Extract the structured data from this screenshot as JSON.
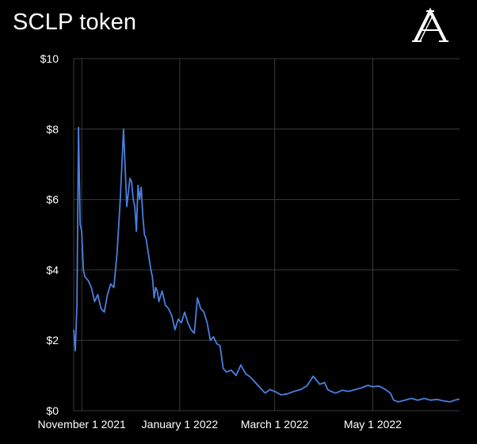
{
  "chart_data": {
    "type": "line",
    "title": "SCLP token",
    "xlabel": "",
    "ylabel": "",
    "x_tick_labels": [
      "November 1 2021",
      "January 1 2022",
      "March 1 2022",
      "May 1 2022"
    ],
    "x_tick_dates": [
      "2021-11-01",
      "2022-01-01",
      "2022-03-01",
      "2022-05-01"
    ],
    "xlim": [
      "2021-10-27",
      "2022-06-24"
    ],
    "y_tick_labels": [
      "$0",
      "$2",
      "$4",
      "$6",
      "$8",
      "$10"
    ],
    "y_tick_values": [
      0,
      2,
      4,
      6,
      8,
      10
    ],
    "ylim": [
      0,
      10
    ],
    "grid": true,
    "legend": "none",
    "colors": {
      "background": "#000000",
      "line": "#4a7fe0",
      "grid": "#3a3a3a",
      "text": "#ffffff"
    },
    "series": [
      {
        "x": [
          "2021-10-27",
          "2021-10-28",
          "2021-10-29",
          "2021-10-30",
          "2021-10-31",
          "2021-11-01",
          "2021-11-02",
          "2021-11-03",
          "2021-11-04",
          "2021-11-05",
          "2021-11-07",
          "2021-11-09",
          "2021-11-11",
          "2021-11-13",
          "2021-11-15",
          "2021-11-17",
          "2021-11-19",
          "2021-11-21",
          "2021-11-23",
          "2021-11-25",
          "2021-11-27",
          "2021-11-29",
          "2021-12-01",
          "2021-12-02",
          "2021-12-03",
          "2021-12-04",
          "2021-12-05",
          "2021-12-06",
          "2021-12-07",
          "2021-12-08",
          "2021-12-09",
          "2021-12-10",
          "2021-12-11",
          "2021-12-12",
          "2021-12-13",
          "2021-12-14",
          "2021-12-15",
          "2021-12-16",
          "2021-12-17",
          "2021-12-18",
          "2021-12-19",
          "2021-12-21",
          "2021-12-23",
          "2021-12-25",
          "2021-12-27",
          "2021-12-29",
          "2021-12-31",
          "2022-01-02",
          "2022-01-04",
          "2022-01-06",
          "2022-01-08",
          "2022-01-10",
          "2022-01-12",
          "2022-01-14",
          "2022-01-16",
          "2022-01-18",
          "2022-01-20",
          "2022-01-22",
          "2022-01-24",
          "2022-01-26",
          "2022-01-28",
          "2022-01-30",
          "2022-02-02",
          "2022-02-05",
          "2022-02-08",
          "2022-02-11",
          "2022-02-14",
          "2022-02-17",
          "2022-02-20",
          "2022-02-23",
          "2022-02-26",
          "2022-03-01",
          "2022-03-05",
          "2022-03-09",
          "2022-03-13",
          "2022-03-17",
          "2022-03-21",
          "2022-03-25",
          "2022-03-29",
          "2022-04-01",
          "2022-04-03",
          "2022-04-05",
          "2022-04-08",
          "2022-04-12",
          "2022-04-16",
          "2022-04-20",
          "2022-04-24",
          "2022-04-28",
          "2022-05-01",
          "2022-05-05",
          "2022-05-09",
          "2022-05-12",
          "2022-05-14",
          "2022-05-17",
          "2022-05-21",
          "2022-05-25",
          "2022-05-29",
          "2022-06-02",
          "2022-06-06",
          "2022-06-10",
          "2022-06-14",
          "2022-06-18",
          "2022-06-21",
          "2022-06-24"
        ],
        "y": [
          2.3,
          1.7,
          3.0,
          8.05,
          5.3,
          5.1,
          4.0,
          3.8,
          3.75,
          3.7,
          3.5,
          3.1,
          3.3,
          2.9,
          2.8,
          3.3,
          3.6,
          3.5,
          4.5,
          6.0,
          8.0,
          5.8,
          6.6,
          6.5,
          6.0,
          5.8,
          5.1,
          6.4,
          6.0,
          6.35,
          5.5,
          5.0,
          4.9,
          4.6,
          4.3,
          4.0,
          3.8,
          3.2,
          3.5,
          3.4,
          3.1,
          3.4,
          3.0,
          2.9,
          2.7,
          2.3,
          2.6,
          2.5,
          2.8,
          2.5,
          2.3,
          2.2,
          3.2,
          2.9,
          2.8,
          2.5,
          2.0,
          2.1,
          1.9,
          1.85,
          1.2,
          1.1,
          1.15,
          1.0,
          1.3,
          1.05,
          0.95,
          0.8,
          0.65,
          0.5,
          0.6,
          0.55,
          0.45,
          0.48,
          0.55,
          0.6,
          0.7,
          0.98,
          0.75,
          0.8,
          0.6,
          0.55,
          0.5,
          0.58,
          0.55,
          0.6,
          0.65,
          0.72,
          0.68,
          0.7,
          0.6,
          0.5,
          0.3,
          0.25,
          0.3,
          0.35,
          0.3,
          0.35,
          0.3,
          0.32,
          0.28,
          0.25,
          0.3,
          0.33
        ]
      }
    ]
  }
}
